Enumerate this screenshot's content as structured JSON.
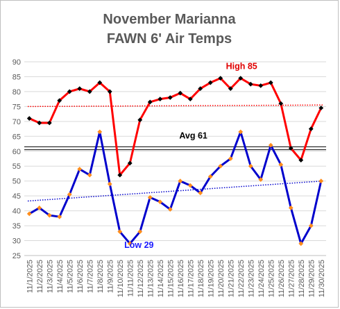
{
  "chart_data": {
    "type": "line",
    "title": "November Marianna",
    "subtitle": "FAWN 6' Air Temps",
    "xlabel": "",
    "ylabel": "",
    "ylim": [
      25,
      90
    ],
    "yticks": [
      25,
      30,
      35,
      40,
      45,
      50,
      55,
      60,
      65,
      70,
      75,
      80,
      85,
      90
    ],
    "grid": true,
    "categories": [
      "11/1/2025",
      "11/2/2025",
      "11/3/2025",
      "11/4/2025",
      "11/5/2025",
      "11/6/2025",
      "11/7/2025",
      "11/8/2025",
      "11/9/2025",
      "11/10/2025",
      "11/11/2025",
      "11/12/2025",
      "11/13/2025",
      "11/14/2025",
      "11/15/2025",
      "11/16/2025",
      "11/17/2025",
      "11/18/2025",
      "11/19/2025",
      "11/20/2025",
      "11/21/2025",
      "11/22/2025",
      "11/23/2025",
      "11/24/2025",
      "11/25/2025",
      "11/26/2025",
      "11/27/2025",
      "11/28/2025",
      "11/29/2025",
      "11/30/2025"
    ],
    "series": [
      {
        "color": "#ff0000",
        "marker_color": "#000000",
        "trend_value_start": 75.0,
        "trend_value_end": 75.5,
        "values": [
          71,
          69.5,
          69.5,
          77,
          80,
          81,
          80,
          83,
          80,
          52,
          56,
          70.5,
          76.5,
          77.5,
          78,
          79.5,
          77.5,
          81,
          83,
          84.5,
          81,
          84.5,
          82.5,
          82,
          83,
          76,
          61,
          57,
          67.5,
          74.5
        ]
      },
      {
        "color": "#0000cc",
        "marker_color": "#ff8c1a",
        "trend_value_start": 43.3,
        "trend_value_end": 50.0,
        "values": [
          39,
          41,
          38.5,
          38,
          45.5,
          54,
          52,
          66.5,
          49,
          33,
          29,
          33,
          44.5,
          43,
          40.5,
          50,
          48.5,
          46,
          51.5,
          55,
          57.5,
          66.5,
          55,
          50.5,
          62,
          55.5,
          41,
          29,
          35,
          50
        ]
      }
    ],
    "reference_lines": [
      60.5,
      61.5
    ],
    "annotations": [
      {
        "text": "High 85",
        "x_index": 21.1,
        "y": 87.5,
        "color": "#e00000"
      },
      {
        "text": "Avg 61",
        "x_index": 16.3,
        "y": 64.2,
        "color": "#000000"
      },
      {
        "text": "Low 29",
        "x_index": 10.9,
        "y": 27.6,
        "color": "#1a1aff"
      }
    ]
  }
}
